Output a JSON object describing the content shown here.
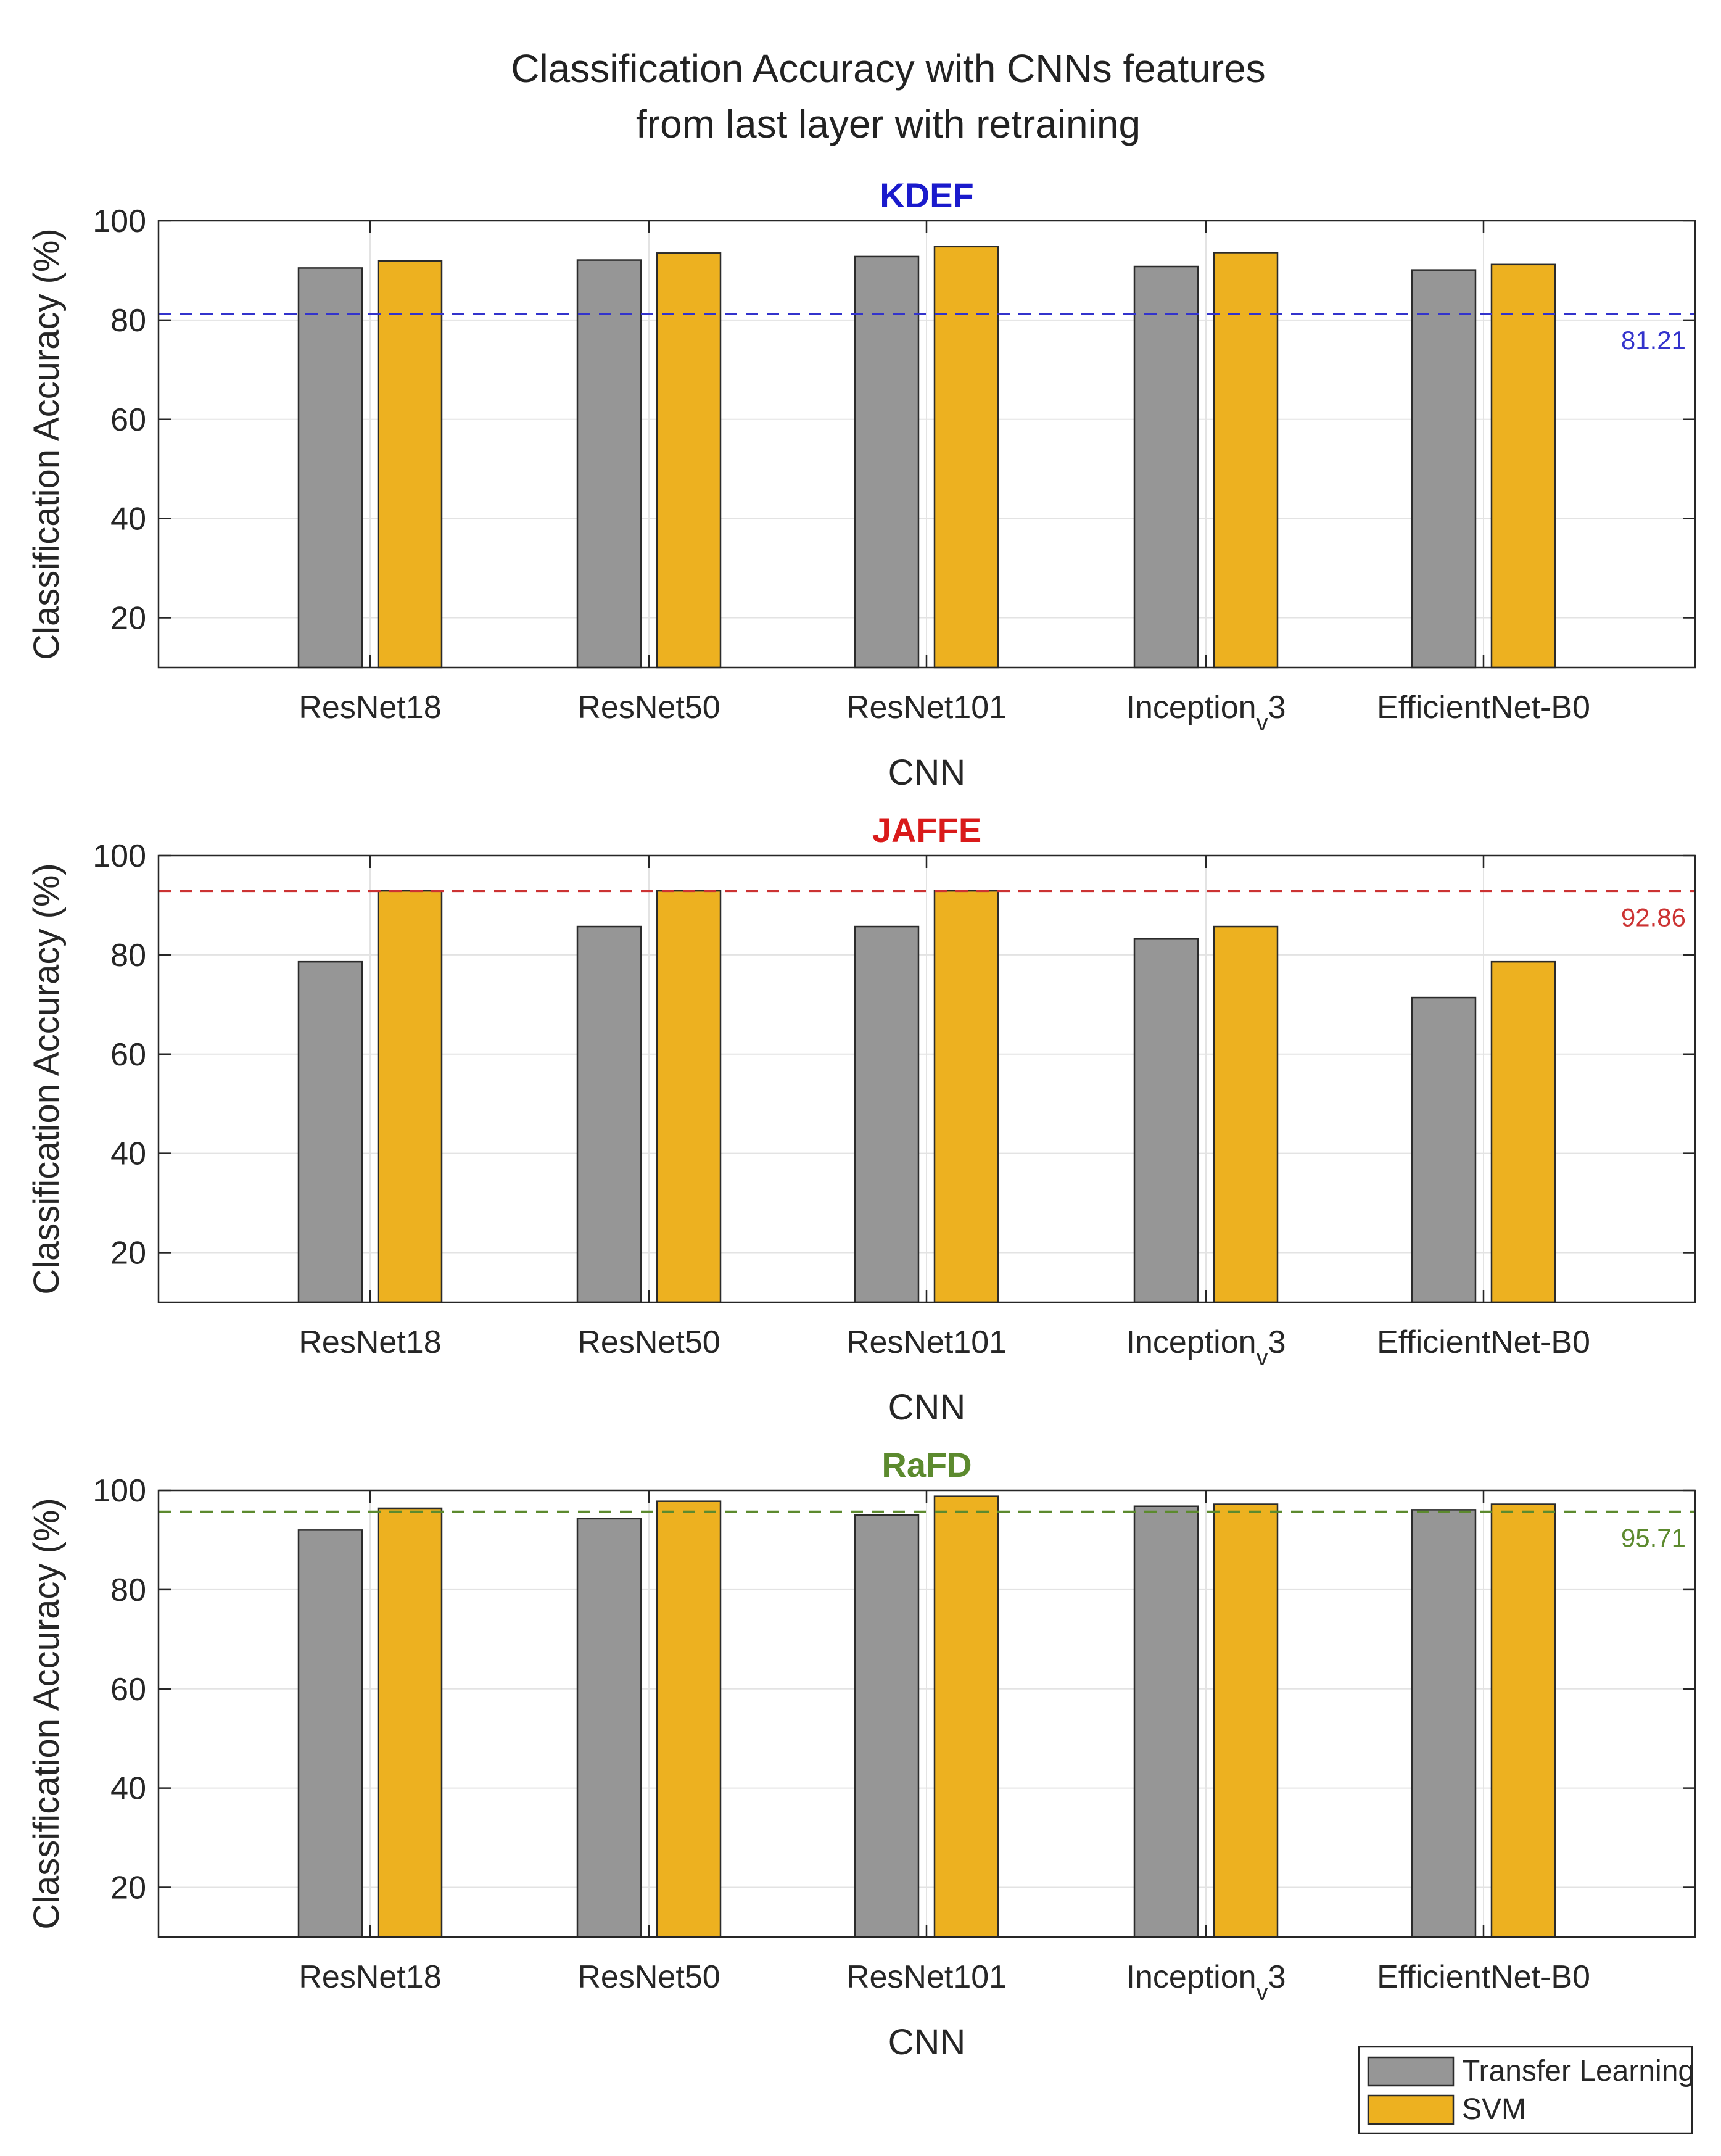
{
  "chart_data": [
    {
      "type": "bar",
      "title": "KDEF",
      "title_color": "#1a1acc",
      "xlabel": "CNN",
      "ylabel": "Classification Accuracy (%)",
      "ylim": [
        10,
        100
      ],
      "yticks": [
        20,
        40,
        60,
        80,
        100
      ],
      "grid": true,
      "categories": [
        "ResNet18",
        "ResNet50",
        "ResNet101",
        "Inception_v3",
        "EfficientNet-B0"
      ],
      "series": [
        {
          "name": "Transfer Learning",
          "values": [
            90.5,
            92.1,
            92.8,
            90.8,
            90.1
          ]
        },
        {
          "name": "SVM",
          "values": [
            91.9,
            93.5,
            94.8,
            93.6,
            91.2
          ]
        }
      ],
      "reference_line": {
        "value": 81.21,
        "label": "81.21",
        "color": "#3333cc"
      }
    },
    {
      "type": "bar",
      "title": "JAFFE",
      "title_color": "#d91a1a",
      "xlabel": "CNN",
      "ylabel": "Classification Accuracy (%)",
      "ylim": [
        10,
        100
      ],
      "yticks": [
        20,
        40,
        60,
        80,
        100
      ],
      "grid": true,
      "categories": [
        "ResNet18",
        "ResNet50",
        "ResNet101",
        "Inception_v3",
        "EfficientNet-B0"
      ],
      "series": [
        {
          "name": "Transfer Learning",
          "values": [
            78.6,
            85.7,
            85.7,
            83.3,
            71.4
          ]
        },
        {
          "name": "SVM",
          "values": [
            92.9,
            92.9,
            92.9,
            85.7,
            78.6
          ]
        }
      ],
      "reference_line": {
        "value": 92.86,
        "label": "92.86",
        "color": "#cc3333"
      }
    },
    {
      "type": "bar",
      "title": "RaFD",
      "title_color": "#5c8a2e",
      "xlabel": "CNN",
      "ylabel": "Classification Accuracy (%)",
      "ylim": [
        10,
        100
      ],
      "yticks": [
        20,
        40,
        60,
        80,
        100
      ],
      "grid": true,
      "categories": [
        "ResNet18",
        "ResNet50",
        "ResNet101",
        "Inception_v3",
        "EfficientNet-B0"
      ],
      "series": [
        {
          "name": "Transfer Learning",
          "values": [
            92.0,
            94.3,
            95.0,
            96.8,
            96.1
          ]
        },
        {
          "name": "SVM",
          "values": [
            96.4,
            97.8,
            98.8,
            97.2,
            97.2
          ]
        }
      ],
      "reference_line": {
        "value": 95.71,
        "label": "95.71",
        "color": "#5c8a2e"
      }
    }
  ],
  "figure": {
    "title_line1": "Classification Accuracy with CNNs features",
    "title_line2": "from last layer with retraining"
  },
  "legend": {
    "placement": "bottom-right",
    "items": [
      {
        "label": "Transfer Learning",
        "color": "#969696"
      },
      {
        "label": "SVM",
        "color": "#edb120"
      }
    ]
  }
}
